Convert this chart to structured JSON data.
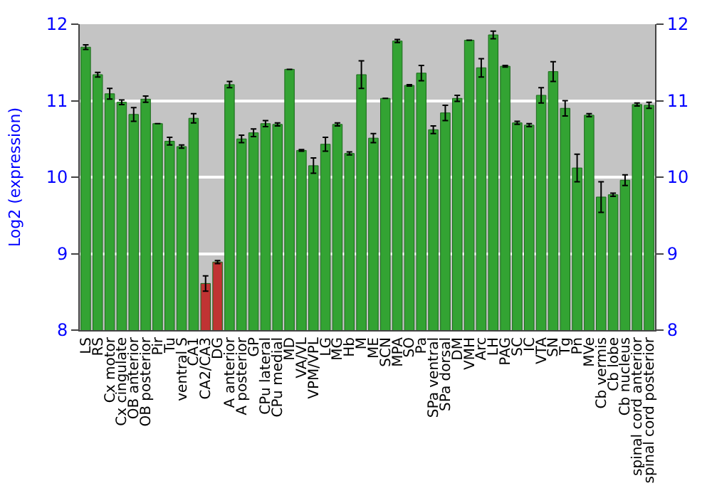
{
  "chart_data": {
    "type": "bar",
    "ylabel": "Log2 (expression)",
    "categories": [
      "LS",
      "RS",
      "Cx motor",
      "Cx cingulate",
      "OB anterior",
      "OB posterior",
      "Pir",
      "Tu",
      "ventral S",
      "CA1",
      "CA2/CA3",
      "DG",
      "A anterior",
      "A posterior",
      "GP",
      "CPu lateral",
      "CPu medial",
      "MD",
      "VA/VL",
      "VPM/VPL",
      "LG",
      "MG",
      "Hb",
      "M",
      "ME",
      "SCN",
      "MPA",
      "SO",
      "Pa",
      "SPa ventral",
      "SPa dorsal",
      "DM",
      "VMH",
      "Arc",
      "LH",
      "PAG",
      "SC",
      "IC",
      "VTA",
      "SN",
      "Tg",
      "Pn",
      "MVe",
      "Cb vermis",
      "Cb lobe",
      "Cb nucleus",
      "spinal cord anterior",
      "spinal cord posterior"
    ],
    "values": [
      11.7,
      11.34,
      11.09,
      10.98,
      10.82,
      11.02,
      10.7,
      10.47,
      10.4,
      10.77,
      8.61,
      8.89,
      11.21,
      10.5,
      10.58,
      10.7,
      10.69,
      11.41,
      10.35,
      10.15,
      10.43,
      10.69,
      10.31,
      11.34,
      10.51,
      11.03,
      11.78,
      11.2,
      11.36,
      10.62,
      10.84,
      11.03,
      11.79,
      11.43,
      11.86,
      11.45,
      10.71,
      10.68,
      11.07,
      11.38,
      10.9,
      10.12,
      10.81,
      9.74,
      9.77,
      9.96,
      10.95,
      10.94
    ],
    "errors": [
      0.03,
      0.03,
      0.07,
      0.03,
      0.09,
      0.04,
      null,
      0.05,
      0.02,
      0.06,
      0.1,
      0.02,
      0.04,
      0.05,
      0.05,
      0.04,
      0.02,
      null,
      0.01,
      0.1,
      0.09,
      0.02,
      0.02,
      0.18,
      0.06,
      null,
      0.02,
      0.01,
      0.1,
      0.05,
      0.1,
      0.04,
      null,
      0.12,
      0.05,
      0.01,
      0.02,
      0.02,
      0.1,
      0.13,
      0.1,
      0.18,
      0.02,
      0.2,
      0.02,
      0.07,
      0.02,
      0.04
    ],
    "colors": [
      "#33a333",
      "#33a333",
      "#33a333",
      "#33a333",
      "#33a333",
      "#33a333",
      "#33a333",
      "#33a333",
      "#33a333",
      "#33a333",
      "#c03333",
      "#c03333",
      "#33a333",
      "#33a333",
      "#33a333",
      "#33a333",
      "#33a333",
      "#33a333",
      "#33a333",
      "#33a333",
      "#33a333",
      "#33a333",
      "#33a333",
      "#33a333",
      "#33a333",
      "#33a333",
      "#33a333",
      "#33a333",
      "#33a333",
      "#33a333",
      "#33a333",
      "#33a333",
      "#33a333",
      "#33a333",
      "#33a333",
      "#33a333",
      "#33a333",
      "#33a333",
      "#33a333",
      "#33a333",
      "#33a333",
      "#33a333",
      "#33a333",
      "#33a333",
      "#33a333",
      "#33a333",
      "#33a333",
      "#33a333"
    ],
    "ylim": [
      8,
      12
    ],
    "yticks": [
      8,
      9,
      10,
      11,
      12
    ],
    "y2lim": [
      8,
      12
    ],
    "y2ticks": [
      8,
      9,
      10,
      11,
      12
    ],
    "grid": "y"
  }
}
